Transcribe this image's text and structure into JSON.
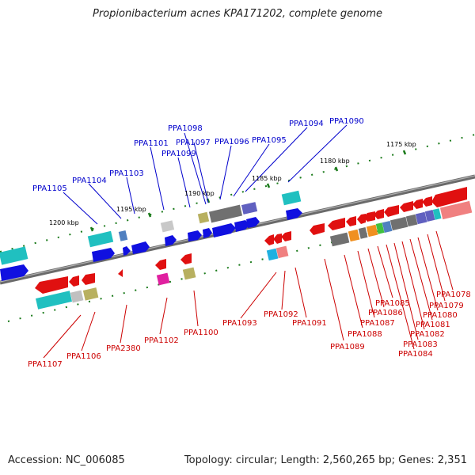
{
  "title": "Propionibacterium acnes KPA171202, complete genome",
  "footer": {
    "accession": "Accession: NC_006085",
    "topology": "Topology: circular; Length: 2,560,265 bp; Genes: 2,351"
  },
  "colors": {
    "backbone": "#7a7a7a",
    "top_label": "#0000cc",
    "bottom_label": "#cc0000",
    "tick": "#1a7a1a"
  },
  "scale": {
    "ticks_kbp": [
      1200,
      1195,
      1190,
      1185,
      1180,
      1175
    ],
    "unit": "kbp"
  },
  "top_labels": [
    "PPA1105",
    "PPA1104",
    "PPA1103",
    "PPA1101",
    "PPA1098",
    "PPA1097",
    "PPA1099",
    "PPA1096",
    "PPA1095",
    "PPA1094",
    "PPA1090"
  ],
  "bottom_labels": [
    "PPA1107",
    "PPA1106",
    "PPA2380",
    "PPA1102",
    "PPA1100",
    "PPA1093",
    "PPA1092",
    "PPA1091",
    "PPA1089",
    "PPA1088",
    "PPA1087",
    "PPA1086",
    "PPA1085",
    "PPA1084",
    "PPA1083",
    "PPA1082",
    "PPA1081",
    "PPA1080",
    "PPA1079",
    "PPA1078"
  ]
}
